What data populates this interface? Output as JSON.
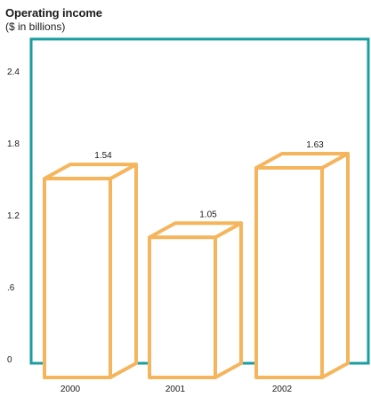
{
  "chart_data": {
    "type": "bar",
    "title": "Operating income",
    "subtitle": "($ in billions)",
    "categories": [
      "2000",
      "2001",
      "2002"
    ],
    "values": [
      1.54,
      1.05,
      1.63
    ],
    "value_labels": [
      "1.54",
      "1.05",
      "1.63"
    ],
    "ytick_labels": [
      "0",
      ".6",
      "1.2",
      "1.8",
      "2.4"
    ],
    "yticks": [
      0,
      0.6,
      1.2,
      1.8,
      2.4
    ],
    "ylim": [
      0,
      2.7
    ],
    "xlabel": "",
    "ylabel": "",
    "grid": false,
    "colors": {
      "frame": "#1a9ea0",
      "bar_outline": "#f5b55c"
    }
  }
}
